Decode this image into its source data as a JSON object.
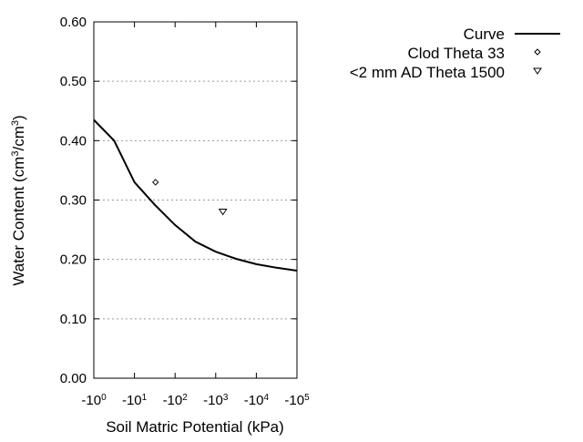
{
  "chart_data": {
    "type": "line",
    "title": "",
    "xlabel": "Soil Matric Potential (kPa)",
    "ylabel_main": "Water Content (cm",
    "ylabel_sup1": "3",
    "ylabel_mid": "/cm",
    "ylabel_sup2": "3",
    "ylabel_end": ")",
    "x_scale": "log (negative values)",
    "xlim": [
      -1,
      -100000
    ],
    "ylim": [
      0,
      0.6
    ],
    "x_ticks": [
      {
        "base": "-10",
        "exp": "0"
      },
      {
        "base": "-10",
        "exp": "1"
      },
      {
        "base": "-10",
        "exp": "2"
      },
      {
        "base": "-10",
        "exp": "3"
      },
      {
        "base": "-10",
        "exp": "4"
      },
      {
        "base": "-10",
        "exp": "5"
      }
    ],
    "y_ticks": [
      "0.00",
      "0.10",
      "0.20",
      "0.30",
      "0.40",
      "0.50",
      "0.60"
    ],
    "grid": "horizontal dotted",
    "legend_position": "top-right outside",
    "series": [
      {
        "name": "Curve",
        "style": "line",
        "color": "#000000",
        "x": [
          -1,
          -3.16,
          -10,
          -31.6,
          -100,
          -316,
          -1000,
          -3162,
          -10000,
          -31623,
          -100000
        ],
        "y": [
          0.435,
          0.4,
          0.33,
          0.292,
          0.258,
          0.23,
          0.213,
          0.201,
          0.192,
          0.186,
          0.181
        ]
      },
      {
        "name": "Clod Theta 33",
        "style": "diamond",
        "x": [
          -33
        ],
        "y": [
          0.33
        ]
      },
      {
        "name": "<2 mm AD Theta 1500",
        "style": "triangle-down",
        "x": [
          -1500
        ],
        "y": [
          0.28
        ]
      }
    ]
  }
}
